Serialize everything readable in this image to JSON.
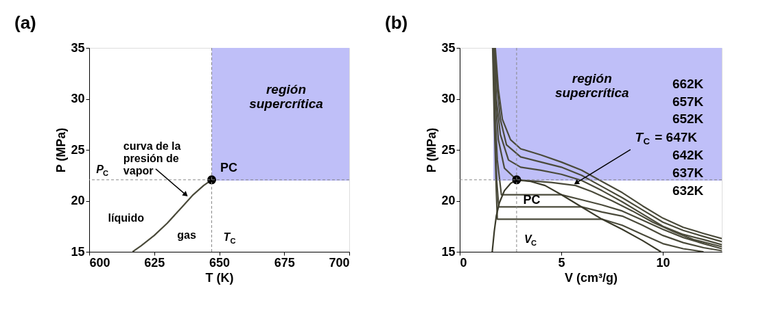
{
  "chart_data": [
    {
      "type": "line",
      "title": "(a)",
      "xlabel": "T (K)",
      "ylabel": "P (MPa)",
      "xlim": [
        600,
        700
      ],
      "xticks": [
        600,
        625,
        650,
        675,
        700
      ],
      "ylim": [
        15,
        35
      ],
      "yticks": [
        15,
        20,
        25,
        30,
        35
      ],
      "grid": false,
      "series": [
        {
          "type": "line",
          "color": "#bfbff8",
          "x": [
            647.1,
            700
          ],
          "values": [
            22.06,
            22.06
          ],
          "lower": [
            22.06,
            22.06
          ],
          "upper": [
            35,
            35
          ]
        },
        {
          "color": "#4a4a3a",
          "x": [
            616.7,
            620,
            625,
            630,
            635,
            640,
            644,
            647.1
          ],
          "values": [
            15,
            15.6,
            16.6,
            17.8,
            19.2,
            20.6,
            21.5,
            22.06
          ]
        },
        {
          "type": "scatter",
          "color": "#000000",
          "marker": "circle",
          "x": [
            647.1
          ],
          "values": [
            22.06
          ]
        }
      ],
      "ref_lines": [
        {
          "axis": "y",
          "value": 22.06,
          "color": "#888888",
          "line_style": "dashed"
        },
        {
          "axis": "x",
          "value": 647.1,
          "color": "#888888",
          "line_style": "dashed"
        }
      ],
      "annotations": [
        {
          "text": "curva de la presión de vapor",
          "x": 636.9,
          "y": 20.65
        },
        {
          "text": "PC",
          "x": 647.1,
          "y": 22.06
        },
        "P$_{C}$",
        "líquido",
        "gas",
        "T$_{C}$",
        "región supercrítica"
      ]
    },
    {
      "type": "line",
      "title": "(b)",
      "xlabel": "V (cm³/g)",
      "ylabel": "P (MPa)",
      "xlim": [
        0,
        12.9
      ],
      "xticks": [
        0,
        5,
        10
      ],
      "ylim": [
        15,
        35
      ],
      "yticks": [
        15,
        20,
        25,
        30,
        35
      ],
      "grid": false,
      "series": [
        {
          "type": "line",
          "color": "#bfbff8",
          "x": [
            1.65,
            12.9
          ],
          "values": [
            22.06,
            22.06
          ],
          "lower": [
            22.06,
            22.06
          ],
          "upper": [
            35,
            35
          ]
        },
        {
          "color": "#4a4a3a",
          "x": [
            1.75,
            1.9,
            2.1,
            2.5,
            3,
            4,
            5,
            6,
            7,
            8,
            9,
            10,
            11,
            12,
            12.9
          ],
          "values": [
            35,
            31,
            28,
            26,
            25.1,
            24.5,
            23.8,
            23.0,
            21.9,
            20.8,
            19.5,
            18.3,
            17.4,
            16.8,
            16.3
          ]
        },
        {
          "color": "#4a4a3a",
          "x": [
            1.72,
            1.85,
            2.0,
            2.3,
            3,
            4,
            5,
            6,
            7,
            8,
            9,
            10,
            11,
            12,
            12.9
          ],
          "values": [
            35,
            31,
            28,
            25.5,
            24.3,
            23.8,
            23.3,
            22.5,
            21.4,
            20.3,
            19.1,
            17.9,
            17.1,
            16.5,
            16.0
          ]
        },
        {
          "color": "#4a4a3a",
          "x": [
            1.7,
            1.8,
            2.0,
            2.4,
            3,
            4,
            5,
            6,
            7,
            8,
            9,
            10,
            11,
            12,
            12.9
          ],
          "values": [
            35,
            30,
            26.5,
            24,
            23.3,
            23.0,
            22.6,
            22.0,
            21.0,
            19.9,
            18.7,
            17.5,
            16.7,
            16.2,
            15.7
          ]
        },
        {
          "color": "#4a4a3a",
          "x": [
            1.68,
            1.76,
            1.9,
            2.2,
            2.8,
            3.5,
            4.5,
            5.7,
            6.5,
            7.5,
            8.5,
            9.5,
            10.5,
            11.5,
            12.9
          ],
          "values": [
            35,
            30,
            26,
            23.2,
            22.06,
            21.95,
            21.8,
            21.5,
            20.9,
            20.0,
            19.0,
            17.9,
            17.0,
            16.2,
            15.5
          ]
        },
        {
          "color": "#4a4a3a",
          "x": [
            1.66,
            1.75,
            1.85,
            2.05,
            5.0,
            6,
            7,
            8,
            9,
            10,
            11,
            12,
            12.9
          ],
          "values": [
            35,
            28,
            24,
            20.6,
            20.6,
            20.1,
            19.6,
            19.0,
            18.1,
            17.2,
            16.4,
            15.8,
            15.3
          ]
        },
        {
          "color": "#4a4a3a",
          "x": [
            1.64,
            1.72,
            1.82,
            1.92,
            6.0,
            7,
            8,
            9,
            10,
            11,
            12,
            12.9
          ],
          "values": [
            35,
            28,
            22,
            19.4,
            19.4,
            18.9,
            18.5,
            17.6,
            16.6,
            15.9,
            15.4,
            15.1
          ]
        },
        {
          "color": "#4a4a3a",
          "x": [
            1.62,
            1.7,
            1.8,
            1.85,
            7.0,
            8,
            9,
            10,
            11,
            12
          ],
          "values": [
            35,
            28,
            21,
            18.2,
            18.2,
            17.6,
            16.7,
            15.8,
            15.3,
            15.0
          ]
        },
        {
          "color": "#3a3a2a",
          "x": [
            1.6,
            1.7,
            1.8,
            1.95,
            2.2,
            2.5,
            2.8,
            3.5,
            4.2,
            5,
            6,
            7,
            8,
            9,
            9.9
          ],
          "values": [
            15,
            17,
            18.5,
            19.8,
            21.0,
            21.7,
            22.06,
            21.9,
            21.5,
            20.6,
            19.4,
            18.2,
            17.2,
            16.1,
            15
          ]
        },
        {
          "type": "scatter",
          "color": "#000000",
          "marker": "circle",
          "x": [
            2.8
          ],
          "values": [
            22.06
          ]
        }
      ],
      "ref_lines": [
        {
          "axis": "y",
          "value": 22.06,
          "color": "#888888",
          "line_style": "dashed"
        },
        {
          "axis": "x",
          "value": 2.8,
          "color": "#888888",
          "line_style": "dashed"
        }
      ],
      "annotations": [
        "región supercrítica",
        "662K",
        "657K",
        "652K",
        {
          "text": "T$_{C}$ = 647K",
          "x": 5.77,
          "y": 21.8
        },
        "642K",
        "637K",
        "632K",
        {
          "text": "PC",
          "x": 2.8,
          "y": 22.06
        },
        "V$_{C}$"
      ]
    }
  ]
}
